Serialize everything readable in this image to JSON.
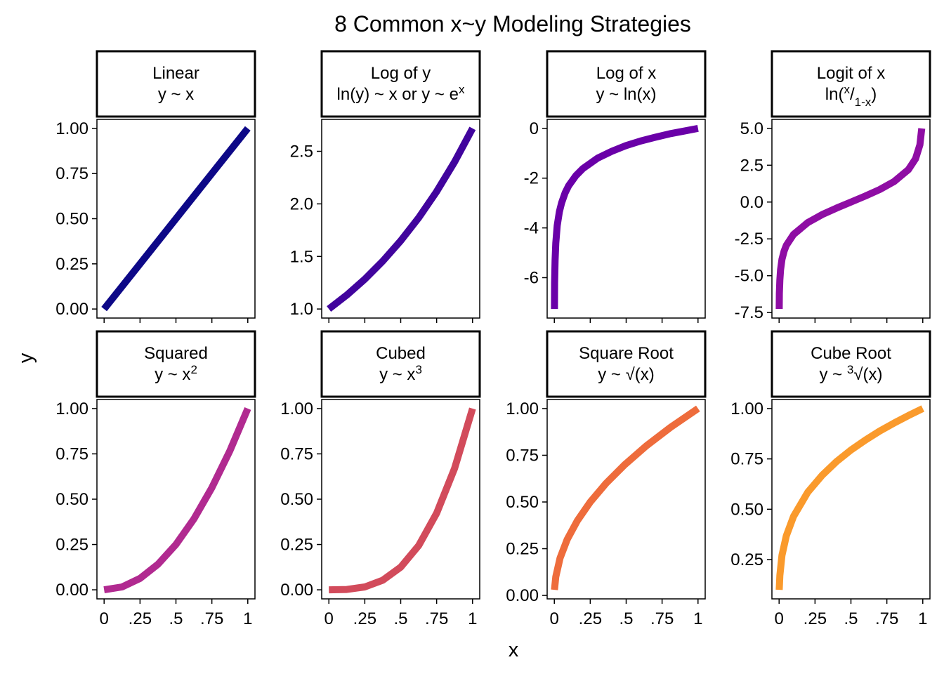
{
  "title": "8 Common x~y Modeling Strategies",
  "xlabel": "x",
  "ylabel": "y",
  "chart_data": [
    {
      "type": "line",
      "strip": [
        "Linear",
        "y ~ x"
      ],
      "color": "#0d0887",
      "x": [
        0,
        0.25,
        0.5,
        0.75,
        1
      ],
      "y": [
        0,
        0.25,
        0.5,
        0.75,
        1
      ],
      "xlim": [
        -0.05,
        1.05
      ],
      "ylim": [
        -0.05,
        1.05
      ],
      "xticks": [
        0,
        0.25,
        0.5,
        0.75,
        1
      ],
      "xtick_labels": [
        "0",
        ".25",
        ".5",
        ".75",
        "1"
      ],
      "yticks": [
        0,
        0.25,
        0.5,
        0.75,
        1
      ],
      "ytick_labels": [
        "0.00",
        "0.25",
        "0.50",
        "0.75",
        "1.00"
      ]
    },
    {
      "type": "line",
      "strip": [
        "Log of y",
        "ln(y) ~ x or y ~ e",
        "x"
      ],
      "color": "#41049d",
      "x": [
        0,
        0.125,
        0.25,
        0.375,
        0.5,
        0.625,
        0.75,
        0.875,
        1
      ],
      "y": [
        1.0,
        1.133,
        1.284,
        1.455,
        1.649,
        1.868,
        2.117,
        2.399,
        2.718
      ],
      "xlim": [
        -0.05,
        1.05
      ],
      "ylim": [
        0.914,
        2.804
      ],
      "xticks": [
        0,
        0.25,
        0.5,
        0.75,
        1
      ],
      "xtick_labels": [
        "0",
        ".25",
        ".5",
        ".75",
        "1"
      ],
      "yticks": [
        1.0,
        1.5,
        2.0,
        2.5
      ],
      "ytick_labels": [
        "1.0",
        "1.5",
        "2.0",
        "2.5"
      ]
    },
    {
      "type": "line",
      "strip": [
        "Log of x",
        "y ~ ln(x)"
      ],
      "color": "#6a00a8",
      "x": [
        0.0007,
        0.002,
        0.005,
        0.01,
        0.02,
        0.035,
        0.05,
        0.075,
        0.1,
        0.15,
        0.2,
        0.3,
        0.4,
        0.5,
        0.6,
        0.7,
        0.8,
        0.9,
        1.0
      ],
      "y": [
        -7.26,
        -6.21,
        -5.3,
        -4.61,
        -3.91,
        -3.35,
        -3.0,
        -2.59,
        -2.3,
        -1.9,
        -1.61,
        -1.2,
        -0.92,
        -0.69,
        -0.51,
        -0.36,
        -0.22,
        -0.11,
        0.0
      ],
      "xlim": [
        -0.05,
        1.05
      ],
      "ylim": [
        -7.623,
        0.363
      ],
      "xticks": [
        0,
        0.25,
        0.5,
        0.75,
        1
      ],
      "xtick_labels": [
        "0",
        ".25",
        ".5",
        ".75",
        "1"
      ],
      "yticks": [
        0,
        -2,
        -4,
        -6
      ],
      "ytick_labels": [
        "0",
        "-2",
        "-4",
        "-6"
      ]
    },
    {
      "type": "line",
      "strip": [
        "Logit of x",
        "ln(",
        "x",
        "/",
        "1-x",
        ")"
      ],
      "color": "#8f0da4",
      "x": [
        0.0007,
        0.002,
        0.005,
        0.01,
        0.02,
        0.035,
        0.05,
        0.1,
        0.2,
        0.3,
        0.4,
        0.5,
        0.6,
        0.7,
        0.8,
        0.9,
        0.95,
        0.98,
        0.993
      ],
      "y": [
        -7.26,
        -6.21,
        -5.29,
        -4.6,
        -3.89,
        -3.32,
        -2.94,
        -2.2,
        -1.39,
        -0.85,
        -0.41,
        0.0,
        0.41,
        0.85,
        1.39,
        2.2,
        2.94,
        3.89,
        5.0
      ],
      "xlim": [
        -0.05,
        1.05
      ],
      "ylim": [
        -7.873,
        5.613
      ],
      "xticks": [
        0,
        0.25,
        0.5,
        0.75,
        1
      ],
      "xtick_labels": [
        "0",
        ".25",
        ".5",
        ".75",
        "1"
      ],
      "yticks": [
        5.0,
        2.5,
        0.0,
        -2.5,
        -5.0,
        -7.5
      ],
      "ytick_labels": [
        "5.0",
        "2.5",
        "0.0",
        "-2.5",
        "-5.0",
        "-7.5"
      ]
    },
    {
      "type": "line",
      "strip": [
        "Squared",
        "y ~ x",
        "2"
      ],
      "color": "#b12a90",
      "x": [
        0,
        0.125,
        0.25,
        0.375,
        0.5,
        0.625,
        0.75,
        0.875,
        1
      ],
      "y": [
        0,
        0.016,
        0.063,
        0.141,
        0.25,
        0.391,
        0.563,
        0.766,
        1
      ],
      "xlim": [
        -0.05,
        1.05
      ],
      "ylim": [
        -0.05,
        1.05
      ],
      "xticks": [
        0,
        0.25,
        0.5,
        0.75,
        1
      ],
      "xtick_labels": [
        "0",
        ".25",
        ".5",
        ".75",
        "1"
      ],
      "yticks": [
        0,
        0.25,
        0.5,
        0.75,
        1
      ],
      "ytick_labels": [
        "0.00",
        "0.25",
        "0.50",
        "0.75",
        "1.00"
      ]
    },
    {
      "type": "line",
      "strip": [
        "Cubed",
        "y ~ x",
        "3"
      ],
      "color": "#d24b5b",
      "x": [
        0,
        0.125,
        0.25,
        0.375,
        0.5,
        0.625,
        0.75,
        0.875,
        1
      ],
      "y": [
        0,
        0.002,
        0.016,
        0.053,
        0.125,
        0.244,
        0.422,
        0.67,
        1
      ],
      "xlim": [
        -0.05,
        1.05
      ],
      "ylim": [
        -0.05,
        1.05
      ],
      "xticks": [
        0,
        0.25,
        0.5,
        0.75,
        1
      ],
      "xtick_labels": [
        "0",
        ".25",
        ".5",
        ".75",
        "1"
      ],
      "yticks": [
        0,
        0.25,
        0.5,
        0.75,
        1
      ],
      "ytick_labels": [
        "0.00",
        "0.25",
        "0.50",
        "0.75",
        "1.00"
      ]
    },
    {
      "type": "line",
      "strip": [
        "Square Root",
        "y ~ √(x)"
      ],
      "color": "#ee6c3c",
      "x": [
        0.001,
        0.01,
        0.04,
        0.09,
        0.16,
        0.25,
        0.36,
        0.49,
        0.64,
        0.81,
        1.0
      ],
      "y": [
        0.03,
        0.1,
        0.2,
        0.3,
        0.4,
        0.5,
        0.6,
        0.7,
        0.8,
        0.9,
        1.0
      ],
      "xlim": [
        -0.05,
        1.05
      ],
      "ylim": [
        -0.0185,
        1.0485
      ],
      "xticks": [
        0,
        0.25,
        0.5,
        0.75,
        1
      ],
      "xtick_labels": [
        "0",
        ".25",
        ".5",
        ".75",
        "1"
      ],
      "yticks": [
        0,
        0.25,
        0.5,
        0.75,
        1
      ],
      "ytick_labels": [
        "0.00",
        "0.25",
        "0.50",
        "0.75",
        "1.00"
      ]
    },
    {
      "type": "line",
      "strip": [
        "Cube Root",
        "y ~ ",
        "3",
        "√(x)"
      ],
      "color": "#fa9a2c",
      "x": [
        0.001,
        0.005,
        0.02,
        0.05,
        0.1,
        0.2,
        0.3,
        0.4,
        0.5,
        0.6,
        0.7,
        0.8,
        0.9,
        1.0
      ],
      "y": [
        0.1,
        0.171,
        0.271,
        0.368,
        0.464,
        0.585,
        0.669,
        0.737,
        0.794,
        0.843,
        0.888,
        0.928,
        0.965,
        1.0
      ],
      "xlim": [
        -0.05,
        1.05
      ],
      "ylim": [
        0.055,
        1.045
      ],
      "xticks": [
        0,
        0.25,
        0.5,
        0.75,
        1
      ],
      "xtick_labels": [
        "0",
        ".25",
        ".5",
        ".75",
        "1"
      ],
      "yticks": [
        0.25,
        0.5,
        0.75,
        1
      ],
      "ytick_labels": [
        "0.25",
        "0.50",
        "0.75",
        "1.00"
      ]
    }
  ]
}
